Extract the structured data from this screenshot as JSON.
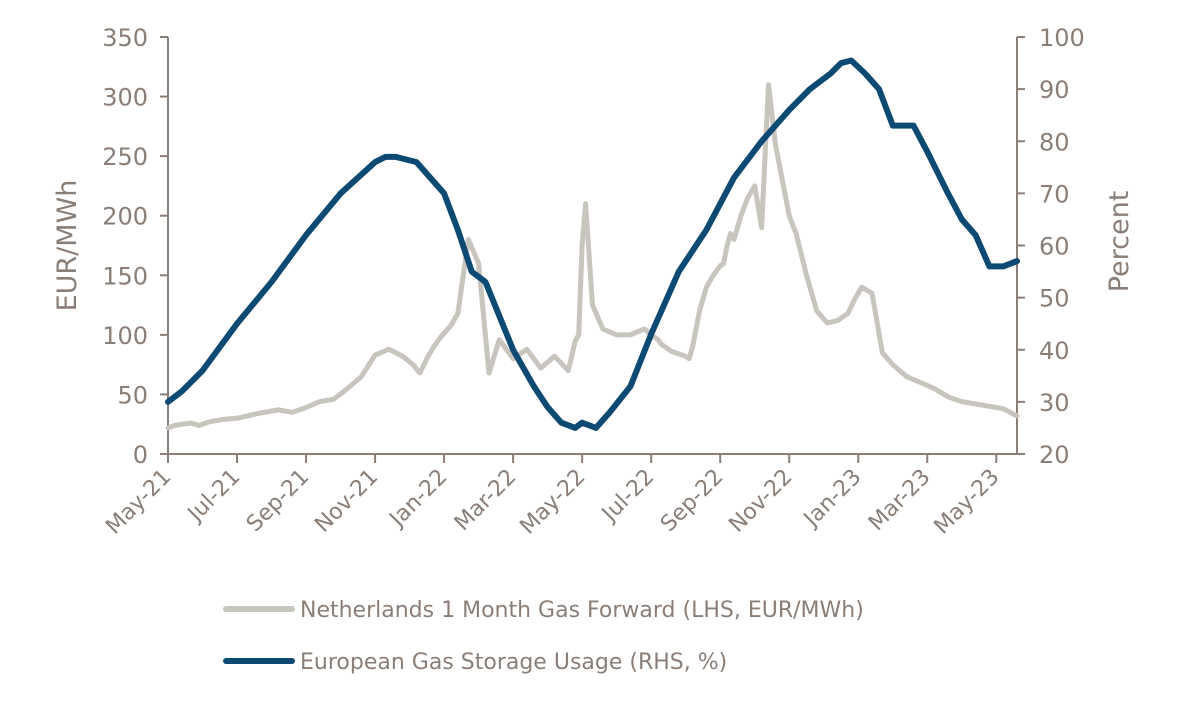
{
  "chart_data": {
    "type": "line",
    "title": "",
    "xlabel": "",
    "ylabel_left": "EUR/MWh",
    "ylabel_right": "Percent",
    "ylim_left": [
      0,
      350
    ],
    "ylim_right": [
      20,
      100
    ],
    "yticks_left": [
      0,
      50,
      100,
      150,
      200,
      250,
      300,
      350
    ],
    "yticks_right": [
      20,
      30,
      40,
      50,
      60,
      70,
      80,
      90,
      100
    ],
    "x_categories": [
      "May-21",
      "Jul-21",
      "Sep-21",
      "Nov-21",
      "Jan-22",
      "Mar-22",
      "May-22",
      "Jul-22",
      "Sep-22",
      "Nov-22",
      "Jan-23",
      "Mar-23",
      "May-23"
    ],
    "grid": false,
    "legend_position": "bottom",
    "series": [
      {
        "name": "Netherlands 1 Month Gas Forward (LHS, EUR/MWh)",
        "axis": "left",
        "color": "#c8c4be",
        "x": [
          0,
          0.1,
          0.2,
          0.33,
          0.45,
          0.6,
          0.8,
          1.0,
          1.3,
          1.6,
          1.8,
          2.0,
          2.2,
          2.4,
          2.6,
          2.8,
          3.0,
          3.2,
          3.4,
          3.55,
          3.65,
          3.75,
          3.85,
          3.95,
          4.1,
          4.2,
          4.35,
          4.5,
          4.65,
          4.8,
          5.0,
          5.2,
          5.4,
          5.6,
          5.8,
          5.9,
          5.95,
          6.0,
          6.05,
          6.15,
          6.3,
          6.5,
          6.7,
          6.9,
          7.0,
          7.1,
          7.15,
          7.2,
          7.25,
          7.3,
          7.4,
          7.5,
          7.55,
          7.6,
          7.7,
          7.8,
          7.9,
          8.0,
          8.05,
          8.1,
          8.15,
          8.2,
          8.3,
          8.4,
          8.5,
          8.6,
          8.7,
          8.8,
          8.9,
          9.0,
          9.1,
          9.25,
          9.4,
          9.55,
          9.7,
          9.85,
          9.95,
          10.05,
          10.2,
          10.35,
          10.5,
          10.7,
          10.9,
          11.1,
          11.3,
          11.5,
          11.7,
          11.9,
          12.1,
          12.3
        ],
        "values": [
          22,
          24,
          25,
          26,
          24,
          27,
          29,
          30,
          34,
          37,
          35,
          39,
          44,
          46,
          55,
          65,
          83,
          88,
          82,
          75,
          68,
          80,
          90,
          98,
          108,
          118,
          180,
          160,
          68,
          96,
          80,
          88,
          72,
          82,
          70,
          95,
          100,
          175,
          210,
          125,
          105,
          100,
          100,
          105,
          100,
          96,
          92,
          90,
          88,
          86,
          84,
          82,
          80,
          90,
          120,
          140,
          150,
          158,
          160,
          175,
          185,
          180,
          200,
          215,
          225,
          190,
          310,
          260,
          230,
          200,
          185,
          150,
          120,
          110,
          112,
          118,
          130,
          140,
          135,
          85,
          75,
          65,
          60,
          55,
          48,
          44,
          42,
          40,
          38,
          32
        ]
      },
      {
        "name": "European Gas Storage Usage (RHS, %)",
        "axis": "right",
        "color": "#0d4a73",
        "x": [
          0,
          0.2,
          0.5,
          1.0,
          1.5,
          2.0,
          2.5,
          3.0,
          3.15,
          3.3,
          3.6,
          4.0,
          4.2,
          4.4,
          4.6,
          5.0,
          5.3,
          5.5,
          5.7,
          5.9,
          6.0,
          6.2,
          6.4,
          6.7,
          7.0,
          7.4,
          7.8,
          8.2,
          8.6,
          9.0,
          9.3,
          9.6,
          9.75,
          9.9,
          10.1,
          10.3,
          10.5,
          10.8,
          11.0,
          11.3,
          11.5,
          11.7,
          11.9,
          12.1,
          12.3
        ],
        "values": [
          30,
          32,
          36,
          45,
          53,
          62,
          70,
          76,
          77,
          77,
          76,
          70,
          63,
          55,
          53,
          40,
          33,
          29,
          26,
          25,
          26,
          25,
          28,
          33,
          43,
          55,
          63,
          73,
          80,
          86,
          90,
          93,
          95,
          95.5,
          93,
          90,
          83,
          83,
          78,
          70,
          65,
          62,
          56,
          56,
          57
        ]
      }
    ]
  }
}
